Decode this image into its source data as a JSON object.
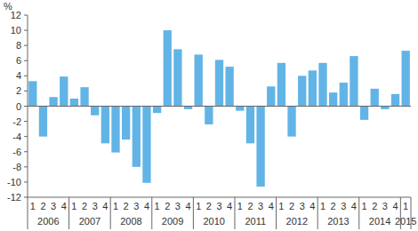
{
  "chart_data": {
    "type": "bar",
    "y_label": "%",
    "categories": [
      "1",
      "2",
      "3",
      "4",
      "1",
      "2",
      "3",
      "4",
      "1",
      "2",
      "3",
      "4",
      "1",
      "2",
      "3",
      "4",
      "1",
      "2",
      "3",
      "4",
      "1",
      "2",
      "3",
      "4",
      "1",
      "2",
      "3",
      "4",
      "1",
      "2",
      "3",
      "4",
      "1",
      "2",
      "3",
      "4",
      "1"
    ],
    "category_groups": [
      {
        "label": "2006",
        "size": 4
      },
      {
        "label": "2007",
        "size": 4
      },
      {
        "label": "2008",
        "size": 4
      },
      {
        "label": "2009",
        "size": 4
      },
      {
        "label": "2010",
        "size": 4
      },
      {
        "label": "2011",
        "size": 4
      },
      {
        "label": "2012",
        "size": 4
      },
      {
        "label": "2013",
        "size": 4
      },
      {
        "label": "2014",
        "size": 4
      },
      {
        "label": "2015",
        "size": 1
      }
    ],
    "values": [
      3.3,
      -4.0,
      1.2,
      3.9,
      1.0,
      2.5,
      -1.2,
      -4.9,
      -6.1,
      -4.4,
      -8.0,
      -10.1,
      -0.9,
      10.0,
      7.5,
      -0.4,
      6.8,
      -2.4,
      6.1,
      5.2,
      -0.6,
      -4.9,
      -10.6,
      2.6,
      5.7,
      -4.0,
      4.0,
      4.7,
      5.7,
      1.8,
      3.1,
      6.6,
      -1.8,
      2.3,
      -0.4,
      1.6,
      7.3
    ],
    "color": "#62b4e6",
    "ylim": [
      -12,
      12
    ],
    "yticks": [
      -12,
      -10,
      -8,
      -6,
      -4,
      -2,
      0,
      2,
      4,
      6,
      8,
      10,
      12
    ],
    "grid": false
  }
}
